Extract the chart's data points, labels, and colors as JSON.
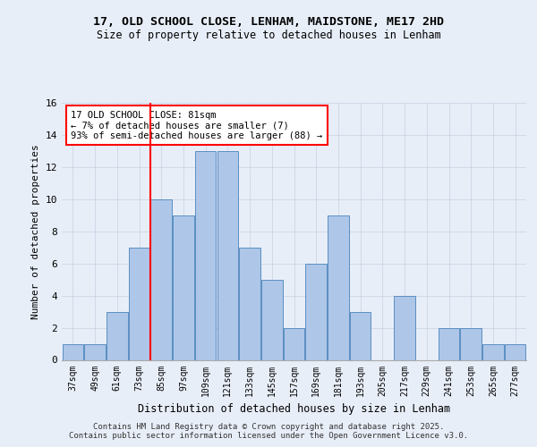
{
  "title1": "17, OLD SCHOOL CLOSE, LENHAM, MAIDSTONE, ME17 2HD",
  "title2": "Size of property relative to detached houses in Lenham",
  "xlabel": "Distribution of detached houses by size in Lenham",
  "ylabel": "Number of detached properties",
  "bins": [
    "37sqm",
    "49sqm",
    "61sqm",
    "73sqm",
    "85sqm",
    "97sqm",
    "109sqm",
    "121sqm",
    "133sqm",
    "145sqm",
    "157sqm",
    "169sqm",
    "181sqm",
    "193sqm",
    "205sqm",
    "217sqm",
    "229sqm",
    "241sqm",
    "253sqm",
    "265sqm",
    "277sqm"
  ],
  "counts": [
    1,
    1,
    3,
    7,
    10,
    9,
    13,
    13,
    7,
    5,
    2,
    6,
    9,
    3,
    0,
    4,
    0,
    2,
    2,
    1,
    1
  ],
  "bar_color": "#aec6e8",
  "bar_edge_color": "#5a8fc2",
  "vline_color": "red",
  "vline_bin_index": 3.333,
  "annotation_text": "17 OLD SCHOOL CLOSE: 81sqm\n← 7% of detached houses are smaller (7)\n93% of semi-detached houses are larger (88) →",
  "annotation_box_color": "white",
  "annotation_box_edge": "red",
  "ylim": [
    0,
    16
  ],
  "yticks": [
    0,
    2,
    4,
    6,
    8,
    10,
    12,
    14,
    16
  ],
  "footer": "Contains HM Land Registry data © Crown copyright and database right 2025.\nContains public sector information licensed under the Open Government Licence v3.0.",
  "bg_color": "#e8eef8"
}
